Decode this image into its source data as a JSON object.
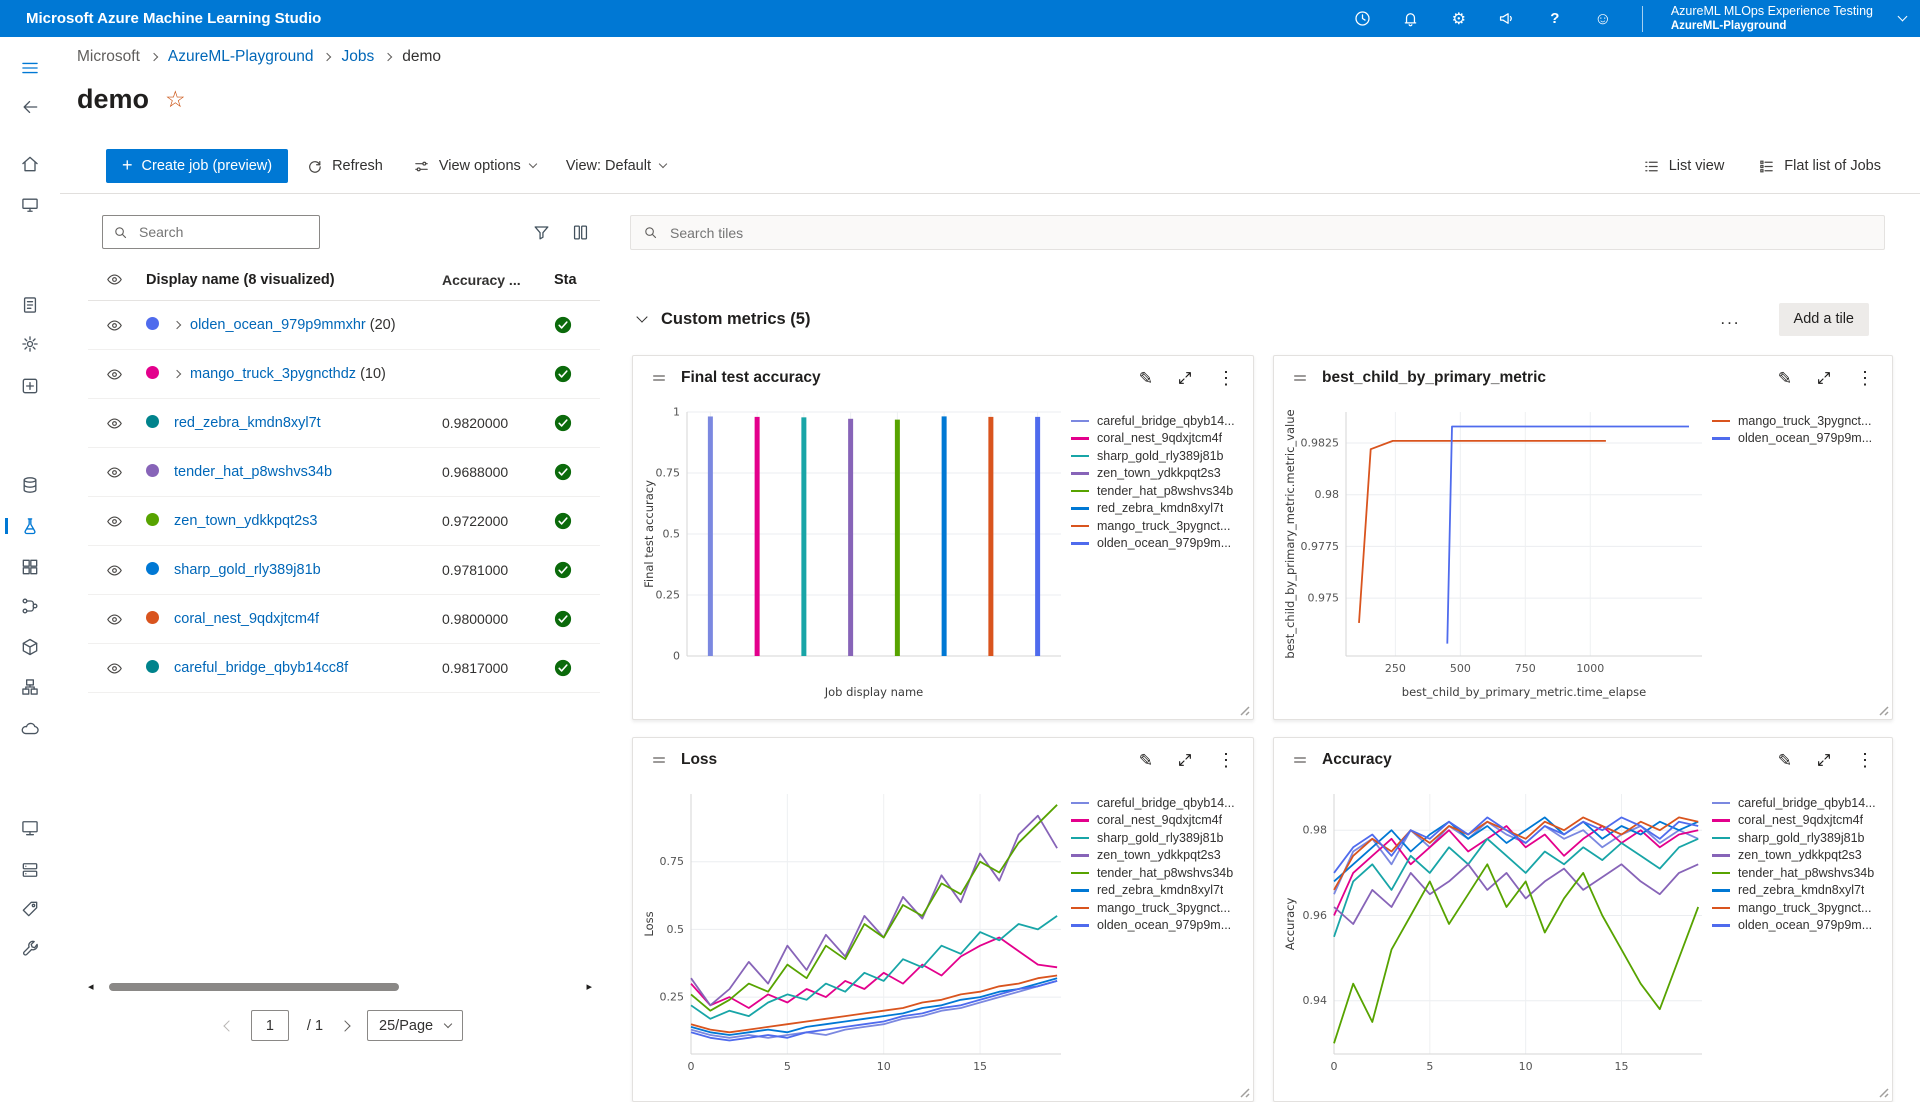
{
  "colors": {
    "topbar": "#0078d4",
    "accent": "#0078d4",
    "link": "#0067b8",
    "success": "#0b6a0b"
  },
  "topbar": {
    "app_title": "Microsoft Azure Machine Learning Studio",
    "icons": [
      "history",
      "notifications",
      "settings",
      "feedback",
      "help",
      "smiley"
    ],
    "tenant": "AzureML MLOps Experience Testing",
    "workspace": "AzureML-Playground"
  },
  "sidebar": {
    "items": [
      "menu",
      "back",
      "home",
      "canvas",
      "notebooks",
      "automl",
      "designer",
      "data",
      "jobs",
      "components",
      "pipelines",
      "environments",
      "models",
      "endpoints",
      "compute",
      "datastores",
      "labeling",
      "settings"
    ],
    "active": "jobs"
  },
  "breadcrumb": {
    "items": [
      {
        "label": "Microsoft",
        "type": "muted"
      },
      {
        "label": "AzureML-Playground",
        "type": "link"
      },
      {
        "label": "Jobs",
        "type": "link"
      },
      {
        "label": "demo",
        "type": "current"
      }
    ]
  },
  "page": {
    "title": "demo"
  },
  "toolbar": {
    "create_job_label": "Create job (preview)",
    "refresh_label": "Refresh",
    "view_options_label": "View options",
    "view_label": "View: Default",
    "list_view_label": "List view",
    "flat_list_label": "Flat list of Jobs"
  },
  "left_panel": {
    "search_placeholder": "Search",
    "icons": [
      "filter",
      "column-options"
    ],
    "header": {
      "display_name": "Display name (8 visualized)",
      "accuracy": "Accuracy ...",
      "status": "Sta"
    },
    "rows": [
      {
        "display": "olden_ocean_979p9mmxhr",
        "suffix": "(20)",
        "dot": "#4f6bed",
        "expandable": true,
        "accuracy": "",
        "status": "completed"
      },
      {
        "display": "mango_truck_3pygncthdz",
        "suffix": "(10)",
        "dot": "#e3008c",
        "expandable": true,
        "accuracy": "",
        "status": "completed"
      },
      {
        "display": "red_zebra_kmdn8xyl7t",
        "suffix": "",
        "dot": "#00838c",
        "expandable": false,
        "accuracy": "0.9820000",
        "status": "completed"
      },
      {
        "display": "tender_hat_p8wshvs34b",
        "suffix": "",
        "dot": "#8764b8",
        "expandable": false,
        "accuracy": "0.9688000",
        "status": "completed"
      },
      {
        "display": "zen_town_ydkkpqt2s3",
        "suffix": "",
        "dot": "#57a300",
        "expandable": false,
        "accuracy": "0.9722000",
        "status": "completed"
      },
      {
        "display": "sharp_gold_rly389j81b",
        "suffix": "",
        "dot": "#0078d4",
        "expandable": false,
        "accuracy": "0.9781000",
        "status": "completed"
      },
      {
        "display": "coral_nest_9qdxjtcm4f",
        "suffix": "",
        "dot": "#d9541e",
        "expandable": false,
        "accuracy": "0.9800000",
        "status": "completed"
      },
      {
        "display": "careful_bridge_qbyb14cc8f",
        "suffix": "",
        "dot": "#00838c",
        "expandable": false,
        "accuracy": "0.9817000",
        "status": "completed"
      }
    ],
    "pagination": {
      "page": "1",
      "of": "/ 1",
      "page_size": "25/Page"
    }
  },
  "main": {
    "search_placeholder": "Search tiles",
    "section_title": "Custom metrics (5)",
    "more_label": "...",
    "add_tile_label": "Add a tile"
  },
  "chart_data": [
    {
      "type": "bar",
      "title": "Final test accuracy",
      "xlabel": "Job display name",
      "ylabel": "Final test accuracy",
      "ylim": [
        0,
        1
      ],
      "yticks": [
        0,
        0.25,
        0.5,
        0.75,
        1
      ],
      "margin_left": 46,
      "legend_position": "right",
      "grid": true,
      "series": [
        {
          "name": "careful_bridge_qbyb14...",
          "color": "#7b88e0",
          "value": 0.9817
        },
        {
          "name": "coral_nest_9qdxjtcm4f",
          "color": "#e3008c",
          "value": 0.98
        },
        {
          "name": "sharp_gold_rly389j81b",
          "color": "#18a5a7",
          "value": 0.9781
        },
        {
          "name": "zen_town_ydkkpqt2s3",
          "color": "#8764b8",
          "value": 0.9722
        },
        {
          "name": "tender_hat_p8wshvs34b",
          "color": "#57a300",
          "value": 0.9688
        },
        {
          "name": "red_zebra_kmdn8xyl7t",
          "color": "#0078d4",
          "value": 0.982
        },
        {
          "name": "mango_truck_3pygnct...",
          "color": "#d9541e",
          "value": 0.98
        },
        {
          "name": "olden_ocean_979p9m...",
          "color": "#4f6bed",
          "value": 0.98
        }
      ]
    },
    {
      "type": "line",
      "title": "best_child_by_primary_metric",
      "xlabel": "best_child_by_primary_metric.time_elapse",
      "ylabel": "best_child_by_primary_metric.metric_value",
      "xlim": [
        60,
        1430
      ],
      "ylim": [
        0.9722,
        0.984
      ],
      "xticks": [
        250,
        500,
        750,
        1000
      ],
      "yticks": [
        0.975,
        0.9775,
        0.98,
        0.9825
      ],
      "margin_left": 64,
      "legend_position": "right",
      "grid": true,
      "series": [
        {
          "name": "mango_truck_3pygnct...",
          "color": "#d9541e",
          "points": [
            [
              110,
              0.9738
            ],
            [
              155,
              0.9822
            ],
            [
              240,
              0.9826
            ],
            [
              1060,
              0.9826
            ]
          ]
        },
        {
          "name": "olden_ocean_979p9m...",
          "color": "#4f6bed",
          "points": [
            [
              450,
              0.9728
            ],
            [
              468,
              0.9833
            ],
            [
              1380,
              0.9833
            ]
          ]
        }
      ]
    },
    {
      "type": "line",
      "title": "Loss",
      "xlabel": "",
      "ylabel": "Loss",
      "xlim": [
        0,
        19.2
      ],
      "ylim": [
        0.04,
        1.0
      ],
      "xticks": [
        0,
        5,
        10,
        15
      ],
      "yticks": [
        0.25,
        0.5,
        0.75
      ],
      "margin_left": 50,
      "legend_position": "right",
      "grid": true,
      "series": [
        {
          "name": "careful_bridge_qbyb14...",
          "color": "#7b88e0",
          "values": [
            0.13,
            0.11,
            0.1,
            0.11,
            0.1,
            0.11,
            0.12,
            0.11,
            0.13,
            0.14,
            0.15,
            0.17,
            0.18,
            0.2,
            0.21,
            0.23,
            0.25,
            0.27,
            0.29,
            0.31
          ]
        },
        {
          "name": "coral_nest_9qdxjtcm4f",
          "color": "#e3008c",
          "values": [
            0.3,
            0.22,
            0.25,
            0.21,
            0.26,
            0.23,
            0.28,
            0.25,
            0.31,
            0.28,
            0.34,
            0.3,
            0.37,
            0.33,
            0.4,
            0.44,
            0.47,
            0.42,
            0.37,
            0.36
          ]
        },
        {
          "name": "sharp_gold_rly389j81b",
          "color": "#18a5a7",
          "values": [
            0.22,
            0.17,
            0.2,
            0.18,
            0.23,
            0.26,
            0.24,
            0.3,
            0.27,
            0.34,
            0.31,
            0.39,
            0.36,
            0.44,
            0.41,
            0.49,
            0.46,
            0.52,
            0.5,
            0.55
          ]
        },
        {
          "name": "zen_town_ydkkpqt2s3",
          "color": "#8764b8",
          "values": [
            0.32,
            0.22,
            0.28,
            0.38,
            0.3,
            0.44,
            0.35,
            0.48,
            0.4,
            0.55,
            0.47,
            0.62,
            0.54,
            0.7,
            0.6,
            0.78,
            0.68,
            0.85,
            0.92,
            0.8
          ]
        },
        {
          "name": "tender_hat_p8wshvs34b",
          "color": "#57a300",
          "values": [
            0.26,
            0.2,
            0.24,
            0.3,
            0.27,
            0.37,
            0.32,
            0.44,
            0.39,
            0.52,
            0.47,
            0.59,
            0.55,
            0.67,
            0.63,
            0.75,
            0.71,
            0.82,
            0.89,
            0.96
          ]
        },
        {
          "name": "red_zebra_kmdn8xyl7t",
          "color": "#0078d4",
          "values": [
            0.14,
            0.12,
            0.11,
            0.12,
            0.13,
            0.12,
            0.14,
            0.15,
            0.16,
            0.17,
            0.18,
            0.19,
            0.21,
            0.22,
            0.24,
            0.25,
            0.27,
            0.28,
            0.3,
            0.32
          ]
        },
        {
          "name": "mango_truck_3pygnct...",
          "color": "#d9541e",
          "values": [
            0.15,
            0.13,
            0.12,
            0.13,
            0.14,
            0.15,
            0.16,
            0.17,
            0.18,
            0.19,
            0.2,
            0.21,
            0.23,
            0.24,
            0.26,
            0.27,
            0.29,
            0.3,
            0.32,
            0.33
          ]
        },
        {
          "name": "olden_ocean_979p9m...",
          "color": "#4f6bed",
          "values": [
            0.12,
            0.1,
            0.09,
            0.1,
            0.11,
            0.1,
            0.12,
            0.13,
            0.14,
            0.15,
            0.16,
            0.18,
            0.19,
            0.21,
            0.22,
            0.24,
            0.26,
            0.28,
            0.29,
            0.31
          ]
        }
      ]
    },
    {
      "type": "line",
      "title": "Accuracy",
      "xlabel": "",
      "ylabel": "Accuracy",
      "xlim": [
        0,
        19.2
      ],
      "ylim": [
        0.9275,
        0.9885
      ],
      "xticks": [
        0,
        5,
        10,
        15
      ],
      "yticks": [
        0.94,
        0.96,
        0.98
      ],
      "margin_left": 52,
      "legend_position": "right",
      "grid": true,
      "series": [
        {
          "name": "careful_bridge_qbyb14...",
          "color": "#7b88e0",
          "values": [
            0.965,
            0.975,
            0.978,
            0.972,
            0.98,
            0.976,
            0.981,
            0.978,
            0.982,
            0.979,
            0.977,
            0.981,
            0.978,
            0.98,
            0.976,
            0.979,
            0.981,
            0.977,
            0.98,
            0.978
          ]
        },
        {
          "name": "coral_nest_9qdxjtcm4f",
          "color": "#e3008c",
          "values": [
            0.96,
            0.97,
            0.974,
            0.978,
            0.972,
            0.976,
            0.98,
            0.975,
            0.978,
            0.981,
            0.976,
            0.979,
            0.974,
            0.978,
            0.981,
            0.977,
            0.98,
            0.976,
            0.979,
            0.98
          ]
        },
        {
          "name": "sharp_gold_rly389j81b",
          "color": "#18a5a7",
          "values": [
            0.955,
            0.968,
            0.972,
            0.966,
            0.974,
            0.97,
            0.976,
            0.972,
            0.978,
            0.974,
            0.97,
            0.975,
            0.972,
            0.976,
            0.973,
            0.977,
            0.974,
            0.971,
            0.976,
            0.978
          ]
        },
        {
          "name": "zen_town_ydkkpqt2s3",
          "color": "#8764b8",
          "values": [
            0.962,
            0.958,
            0.966,
            0.962,
            0.97,
            0.965,
            0.968,
            0.972,
            0.966,
            0.97,
            0.964,
            0.968,
            0.971,
            0.966,
            0.969,
            0.972,
            0.968,
            0.965,
            0.97,
            0.972
          ]
        },
        {
          "name": "tender_hat_p8wshvs34b",
          "color": "#57a300",
          "values": [
            0.93,
            0.944,
            0.935,
            0.952,
            0.96,
            0.968,
            0.958,
            0.965,
            0.972,
            0.962,
            0.968,
            0.956,
            0.964,
            0.97,
            0.96,
            0.952,
            0.944,
            0.938,
            0.95,
            0.962
          ]
        },
        {
          "name": "red_zebra_kmdn8xyl7t",
          "color": "#0078d4",
          "values": [
            0.968,
            0.972,
            0.976,
            0.98,
            0.975,
            0.979,
            0.982,
            0.978,
            0.981,
            0.977,
            0.98,
            0.983,
            0.979,
            0.982,
            0.978,
            0.981,
            0.979,
            0.982,
            0.98,
            0.982
          ]
        },
        {
          "name": "mango_truck_3pygnct...",
          "color": "#d9541e",
          "values": [
            0.966,
            0.974,
            0.978,
            0.975,
            0.98,
            0.977,
            0.981,
            0.979,
            0.982,
            0.98,
            0.978,
            0.982,
            0.98,
            0.983,
            0.981,
            0.979,
            0.982,
            0.98,
            0.983,
            0.982
          ]
        },
        {
          "name": "olden_ocean_979p9m...",
          "color": "#4f6bed",
          "values": [
            0.97,
            0.976,
            0.979,
            0.974,
            0.98,
            0.978,
            0.982,
            0.979,
            0.983,
            0.98,
            0.977,
            0.981,
            0.979,
            0.982,
            0.98,
            0.983,
            0.981,
            0.978,
            0.982,
            0.981
          ]
        }
      ]
    }
  ]
}
